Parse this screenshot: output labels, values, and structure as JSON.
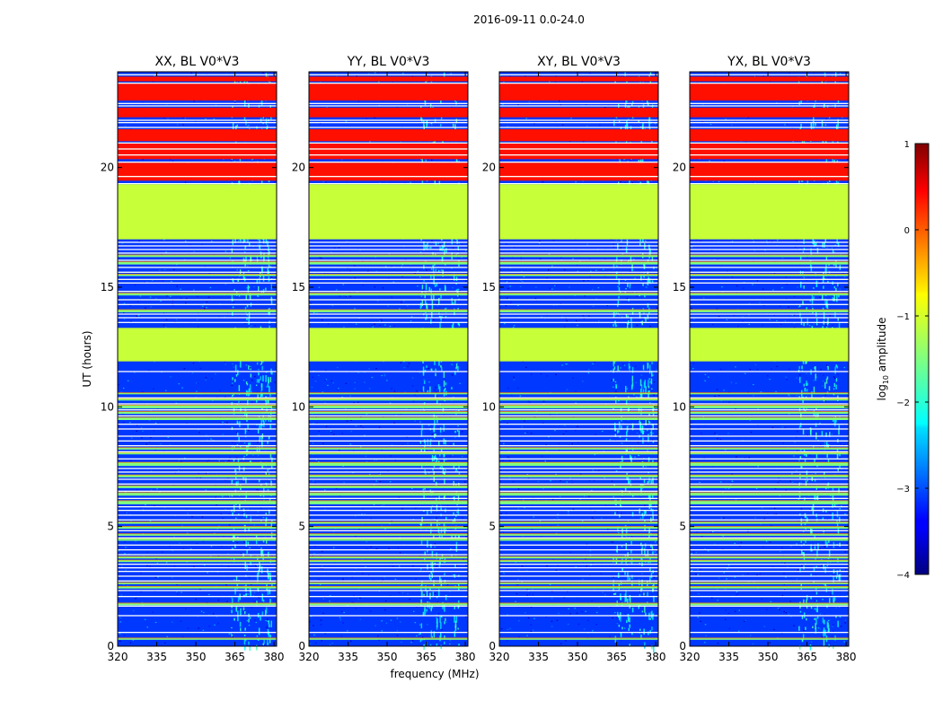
{
  "chart_data": {
    "type": "heatmap",
    "suptitle": "2016-09-11 0.0-24.0",
    "xlabel": "frequency (MHz)",
    "ylabel": "UT (hours)",
    "xlim": [
      320,
      381
    ],
    "ylim": [
      0,
      24
    ],
    "xticks": [
      "320",
      "335",
      "350",
      "365",
      "380"
    ],
    "xtick_values": [
      320,
      335,
      350,
      365,
      380
    ],
    "yticks": [
      "0",
      "5",
      "10",
      "15",
      "20"
    ],
    "ytick_values": [
      0,
      5,
      10,
      15,
      20
    ],
    "panels": [
      {
        "title": "XX, BL V0*V3",
        "rfi_columns": [
          [
            363.5,
            367
          ],
          [
            368,
            371
          ],
          [
            373,
            376
          ],
          [
            376.5,
            379
          ]
        ]
      },
      {
        "title": "YY, BL V0*V3",
        "rfi_columns": [
          [
            362.5,
            365.5
          ],
          [
            366,
            369
          ],
          [
            369.5,
            372.5
          ],
          [
            374.5,
            377.5
          ]
        ]
      },
      {
        "title": "XY, BL V0*V3",
        "rfi_columns": [
          [
            363.5,
            367
          ],
          [
            368,
            371
          ],
          [
            373,
            376
          ],
          [
            376.5,
            379
          ]
        ]
      },
      {
        "title": "YX, BL V0*V3",
        "rfi_columns": [
          [
            361.5,
            365
          ],
          [
            366,
            369
          ],
          [
            370.5,
            373.5
          ],
          [
            374.5,
            377.5
          ]
        ]
      }
    ],
    "colorbar": {
      "label": "log10 amplitude",
      "label_main": "log",
      "label_sub": "10",
      "label_rest": " amplitude",
      "range": [
        -4,
        1
      ],
      "ticks": [
        "−4",
        "−3",
        "−2",
        "−1",
        "0",
        "1"
      ],
      "tick_values": [
        -4,
        -3,
        -2,
        -1,
        0,
        1
      ]
    },
    "background_level": -3.1,
    "flagged_level": -1.15,
    "hot_level": 0.3,
    "flagged_ranges": [
      [
        11.9,
        13.3
      ],
      [
        17.0,
        19.3
      ]
    ],
    "hot_ranges": [
      [
        19.45,
        20.2
      ],
      [
        20.35,
        21.0
      ],
      [
        21.1,
        21.6
      ],
      [
        22.1,
        22.5
      ],
      [
        22.8,
        23.5
      ],
      [
        23.6,
        23.8
      ]
    ],
    "bright_bands": [
      [
        0.3,
        0.06
      ],
      [
        1.75,
        0.08
      ],
      [
        2.45,
        0.08
      ],
      [
        2.62,
        0.06
      ],
      [
        3.55,
        0.07
      ],
      [
        3.7,
        0.07
      ],
      [
        4.45,
        0.09
      ],
      [
        4.65,
        0.07
      ],
      [
        4.95,
        0.08
      ],
      [
        5.15,
        0.07
      ],
      [
        6.0,
        0.14
      ],
      [
        6.35,
        0.12
      ],
      [
        6.65,
        0.09
      ],
      [
        7.1,
        0.09
      ],
      [
        7.6,
        0.14
      ],
      [
        8.05,
        0.07
      ],
      [
        8.25,
        0.07
      ],
      [
        9.5,
        0.1
      ],
      [
        9.75,
        0.08
      ],
      [
        10.0,
        0.13
      ],
      [
        10.3,
        0.07
      ],
      [
        10.55,
        0.05
      ],
      [
        14.0,
        0.1
      ],
      [
        14.7,
        0.09
      ],
      [
        15.5,
        0.07
      ],
      [
        16.0,
        0.1
      ],
      [
        16.3,
        0.08
      ]
    ],
    "white_lines": [
      0.6,
      1.3,
      1.7,
      2.1,
      2.35,
      2.75,
      2.95,
      3.15,
      3.3,
      3.45,
      3.85,
      4.05,
      4.25,
      4.55,
      4.85,
      5.3,
      5.5,
      5.7,
      5.85,
      6.2,
      6.5,
      6.8,
      7.0,
      7.3,
      7.45,
      7.85,
      8.15,
      8.4,
      8.6,
      8.8,
      9.1,
      9.3,
      9.65,
      9.9,
      10.15,
      10.4,
      11.5,
      13.55,
      13.75,
      13.9,
      14.3,
      14.5,
      14.85,
      15.2,
      15.35,
      15.65,
      15.85,
      16.15,
      16.45,
      16.6,
      16.75,
      16.9,
      19.35,
      19.65,
      20.25,
      20.55,
      20.8,
      21.05,
      21.7,
      21.9,
      22.0,
      22.6,
      22.7,
      23.55,
      23.9
    ]
  }
}
